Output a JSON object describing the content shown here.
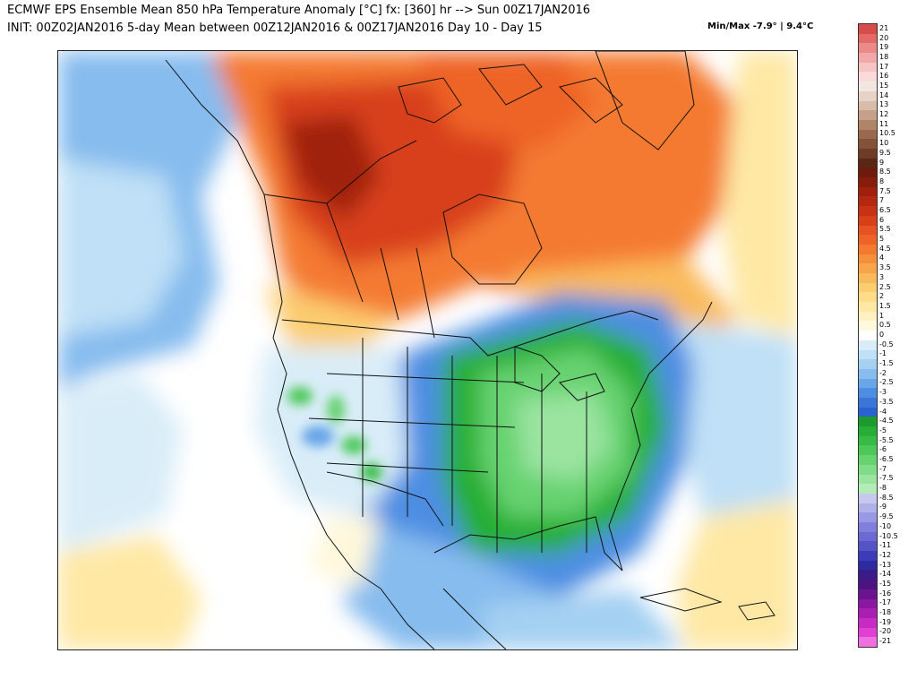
{
  "header": {
    "title_line1": "ECMWF EPS Ensemble Mean 850 hPa Temperature Anomaly [°C] fx: [360] hr --> Sun 00Z17JAN2016",
    "title_line2": "INIT: 00Z02JAN2016 5-day Mean between 00Z12JAN2016 & 00Z17JAN2016   Day 10 - Day 15",
    "minmax_label": "Min/Max -7.9° | 9.4°C"
  },
  "map": {
    "description_regions": [
      {
        "name": "northwest-canada-warm",
        "anomaly": "warm"
      },
      {
        "name": "eastern-us-cold",
        "anomaly": "cold"
      }
    ]
  },
  "colorbar": {
    "labels": [
      "21",
      "20",
      "19",
      "18",
      "17",
      "16",
      "15",
      "14",
      "13",
      "12",
      "11",
      "10.5",
      "10",
      "9.5",
      "9",
      "8.5",
      "8",
      "7.5",
      "7",
      "6.5",
      "6",
      "5.5",
      "5",
      "4.5",
      "4",
      "3.5",
      "3",
      "2.5",
      "2",
      "1.5",
      "1",
      "0.5",
      "0",
      "-0.5",
      "-1",
      "-1.5",
      "-2",
      "-2.5",
      "-3",
      "-3.5",
      "-4",
      "-4.5",
      "-5",
      "-5.5",
      "-6",
      "-6.5",
      "-7",
      "-7.5",
      "-8",
      "-8.5",
      "-9",
      "-9.5",
      "-10",
      "-10.5",
      "-11",
      "-12",
      "-13",
      "-14",
      "-15",
      "-16",
      "-17",
      "-18",
      "-19",
      "-20",
      "-21"
    ],
    "colors": [
      "#d94a4a",
      "#e46a6a",
      "#ec8a8a",
      "#f2a8a8",
      "#f7c4c4",
      "#fadada",
      "#f3e6e0",
      "#e8d2c8",
      "#d8bcaa",
      "#c6a08a",
      "#b08468",
      "#9a6a4e",
      "#845238",
      "#6e3c26",
      "#5a2616",
      "#6e1a0c",
      "#861c0c",
      "#a0200e",
      "#b42810",
      "#c83214",
      "#d8401a",
      "#e65222",
      "#ee6428",
      "#f47a30",
      "#f68e3c",
      "#f8a44a",
      "#faba5c",
      "#fccc70",
      "#fedc88",
      "#fee8a4",
      "#fff2c0",
      "#fff8dc",
      "#ffffff",
      "#d9edf8",
      "#bfe0f6",
      "#a4d0f2",
      "#86bcee",
      "#68a6e8",
      "#4e8ee2",
      "#3a76da",
      "#2a62d0",
      "#1c9c2c",
      "#26ae36",
      "#36bc44",
      "#4cc858",
      "#66d270",
      "#80dc88",
      "#9ae4a0",
      "#b4ecb8",
      "#c8c8ee",
      "#b0b0ea",
      "#9898e4",
      "#8080dc",
      "#6a6ad2",
      "#5454c6",
      "#3c3cb8",
      "#2c2ca0",
      "#3a1c88",
      "#4c1480",
      "#6a1490",
      "#8a18a2",
      "#aa1eb4",
      "#c82ac4",
      "#e040d4",
      "#f070e2"
    ]
  }
}
